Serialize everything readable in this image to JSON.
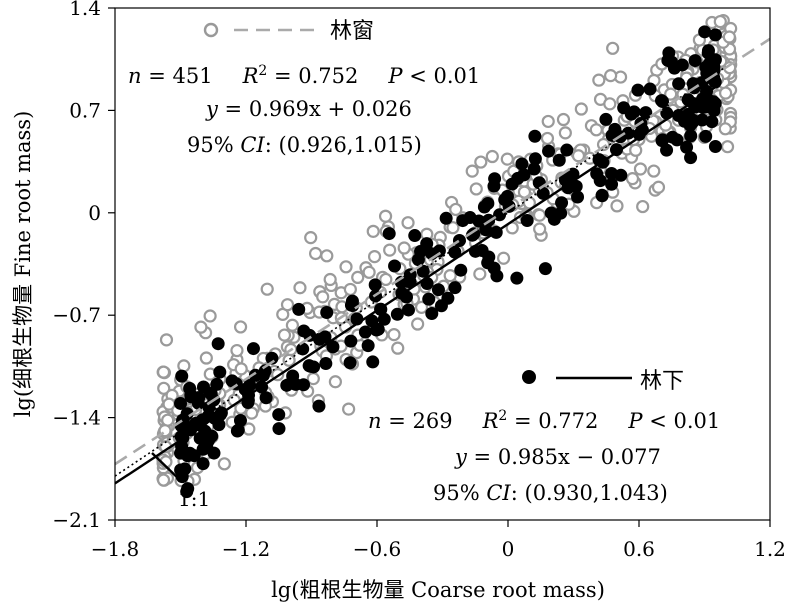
{
  "chart_data": {
    "type": "scatter",
    "title": "",
    "xlabel": "lg(粗根生物量 Coarse root mass)",
    "ylabel": "lg(细根生物量 Fine root mass)",
    "xlim": [
      -1.8,
      1.2
    ],
    "ylim": [
      -2.1,
      1.4
    ],
    "x_ticks": [
      "-1.8",
      "-1.2",
      "-0.6",
      "0",
      "0.6",
      "1.2"
    ],
    "y_ticks": [
      "-2.1",
      "-1.4",
      "-0.7",
      "0",
      "0.7",
      "1.4"
    ],
    "grid": false,
    "one_to_one_label": "1:1",
    "series": [
      {
        "name": "林窗",
        "marker": "open-circle",
        "color": "#999999",
        "line_style": "dashed",
        "n": "451",
        "stat_r2": "0.752",
        "stat_p": "0.01",
        "equation": "0.969x + 0.026",
        "ci": "(0.926,1.015)",
        "slope": 0.969,
        "intercept": 0.026,
        "point_count": 451
      },
      {
        "name": "林下",
        "marker": "filled-circle",
        "color": "#000000",
        "line_style": "solid",
        "n": "269",
        "stat_r2": "0.772",
        "stat_p": "0.01",
        "equation": "0.985x − 0.077",
        "ci": "(0.930,1.043)",
        "slope": 0.985,
        "intercept": -0.077,
        "point_count": 269
      }
    ]
  }
}
